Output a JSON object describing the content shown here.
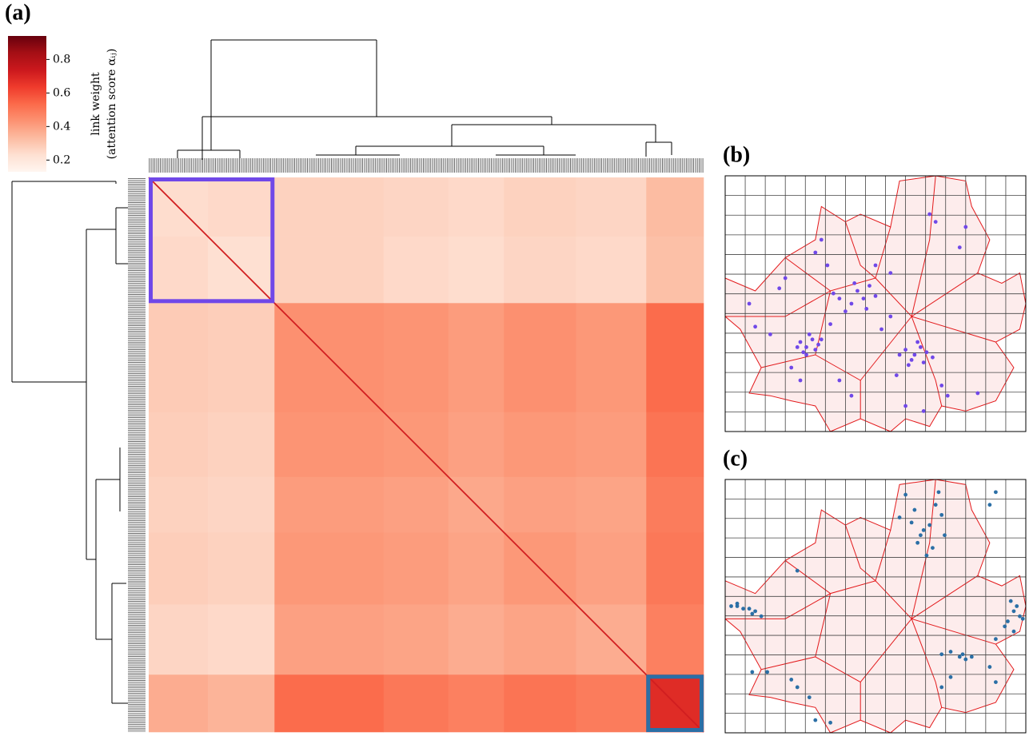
{
  "chart_data": [
    {
      "type": "heatmap",
      "label": "(a)",
      "colorbar_label": "link weight",
      "colorbar_sublabel": "(attention score αᵢⱼ)",
      "colormap": [
        "#fff5f0",
        "#fee0d2",
        "#fcbba1",
        "#fc9272",
        "#fb6a4a",
        "#ef3b2c",
        "#cb181d",
        "#a50f15",
        "#67000d"
      ],
      "ylim": [
        0.13,
        0.94
      ],
      "yticks": [
        0.2,
        0.4,
        0.6,
        0.8
      ],
      "group_sizes": [
        32,
        36,
        59,
        35,
        30,
        39,
        38,
        31
      ],
      "values": [
        [
          0.24,
          0.25,
          0.27,
          0.26,
          0.25,
          0.27,
          0.26,
          0.33
        ],
        [
          0.25,
          0.23,
          0.27,
          0.25,
          0.24,
          0.26,
          0.25,
          0.32
        ],
        [
          0.29,
          0.28,
          0.44,
          0.43,
          0.41,
          0.44,
          0.42,
          0.53
        ],
        [
          0.28,
          0.27,
          0.43,
          0.42,
          0.4,
          0.42,
          0.41,
          0.51
        ],
        [
          0.27,
          0.26,
          0.41,
          0.4,
          0.38,
          0.4,
          0.39,
          0.49
        ],
        [
          0.28,
          0.27,
          0.42,
          0.41,
          0.39,
          0.42,
          0.4,
          0.5
        ],
        [
          0.26,
          0.25,
          0.4,
          0.39,
          0.37,
          0.39,
          0.37,
          0.48
        ],
        [
          0.37,
          0.35,
          0.53,
          0.5,
          0.48,
          0.51,
          0.49,
          0.68
        ]
      ],
      "diagonal": 0.72
    },
    {
      "type": "scatter",
      "label": "(b)",
      "color": "#7048e8",
      "xlim": [
        0,
        100
      ],
      "ylim": [
        0,
        100
      ],
      "x": [
        25,
        27,
        29,
        30,
        26,
        28,
        31,
        24,
        27,
        32,
        38,
        42,
        44,
        40,
        46,
        48,
        43,
        36,
        50,
        47,
        60,
        63,
        65,
        67,
        62,
        58,
        64,
        69,
        61,
        66,
        8,
        10,
        15,
        18,
        20,
        30,
        32,
        34,
        35,
        38,
        42,
        52,
        55,
        57,
        60,
        66,
        72,
        74,
        84,
        78,
        80,
        68,
        70,
        55,
        50,
        22,
        25
      ],
      "y": [
        35,
        33,
        36,
        32,
        31,
        38,
        34,
        33,
        30,
        36,
        52,
        50,
        55,
        47,
        52,
        57,
        58,
        54,
        53,
        48,
        32,
        30,
        33,
        31,
        28,
        30,
        35,
        29,
        26,
        27,
        50,
        41,
        38,
        56,
        60,
        70,
        75,
        65,
        42,
        20,
        14,
        40,
        45,
        22,
        10,
        8,
        18,
        14,
        15,
        72,
        80,
        85,
        82,
        62,
        65,
        25,
        20
      ]
    },
    {
      "type": "scatter",
      "label": "(c)",
      "color": "#2b6fa6",
      "xlim": [
        0,
        100
      ],
      "ylim": [
        0,
        100
      ],
      "x": [
        62,
        63,
        65,
        66,
        68,
        64,
        60,
        70,
        72,
        73,
        67,
        58,
        71,
        69,
        2,
        4,
        6,
        8,
        9,
        10,
        12,
        4,
        94,
        96,
        97,
        98,
        95,
        93,
        99,
        96,
        90,
        24,
        9,
        14,
        22,
        24,
        28,
        72,
        75,
        78,
        79,
        80,
        82,
        75,
        72,
        88,
        90,
        30,
        35,
        90,
        88
      ],
      "y": [
        83,
        88,
        78,
        80,
        82,
        75,
        94,
        90,
        86,
        78,
        70,
        85,
        95,
        73,
        50,
        50,
        49,
        49,
        47,
        48,
        46,
        51,
        44,
        48,
        50,
        46,
        52,
        42,
        45,
        40,
        37,
        64,
        24,
        24,
        21,
        18,
        14,
        31,
        32,
        30,
        31,
        29,
        30,
        22,
        18,
        26,
        20,
        5,
        4,
        95,
        90
      ]
    }
  ]
}
